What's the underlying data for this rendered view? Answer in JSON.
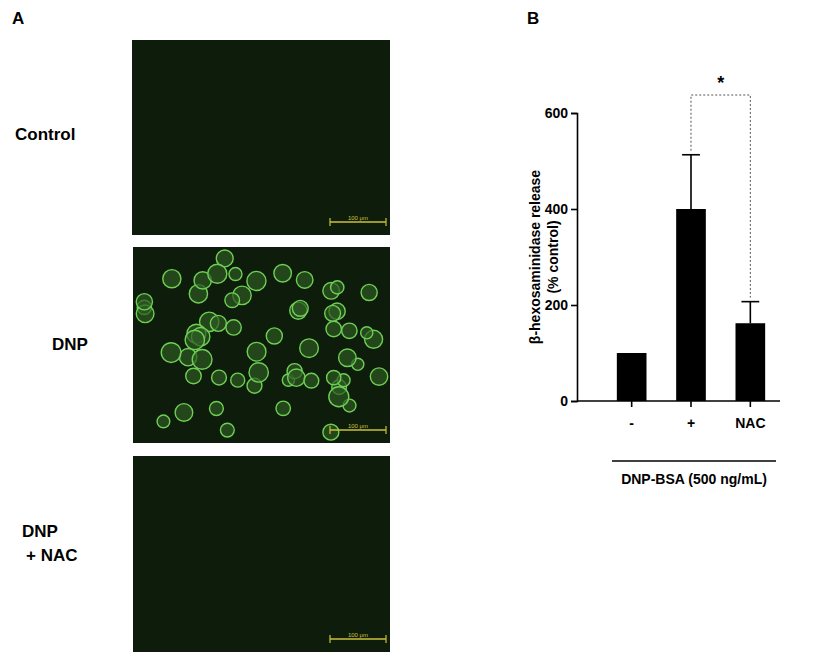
{
  "figure": {
    "panel_labels": [
      "A",
      "B"
    ],
    "images": [
      {
        "label": [
          "Control"
        ],
        "scale_bar": "100 μm",
        "cells": false
      },
      {
        "label": [
          "DNP"
        ],
        "scale_bar": "100 μm",
        "cells": true
      },
      {
        "label": [
          "DNP",
          "+ NAC"
        ],
        "scale_bar": "100 μm",
        "cells": false
      }
    ]
  },
  "chart_data": {
    "type": "bar",
    "categories": [
      "-",
      "+",
      "NAC"
    ],
    "values": [
      100,
      400,
      162
    ],
    "errors": [
      null,
      113,
      45
    ],
    "color": "#000000",
    "ylabel": [
      "β-hexosaminidase release",
      "(% control)"
    ],
    "xlabel": "DNP-BSA (500 ng/mL)",
    "ylim": [
      0,
      600
    ],
    "yticks": [
      0,
      200,
      400,
      600
    ],
    "annotations": [
      {
        "text": "*",
        "categories": [
          "+",
          "NAC"
        ]
      }
    ]
  }
}
